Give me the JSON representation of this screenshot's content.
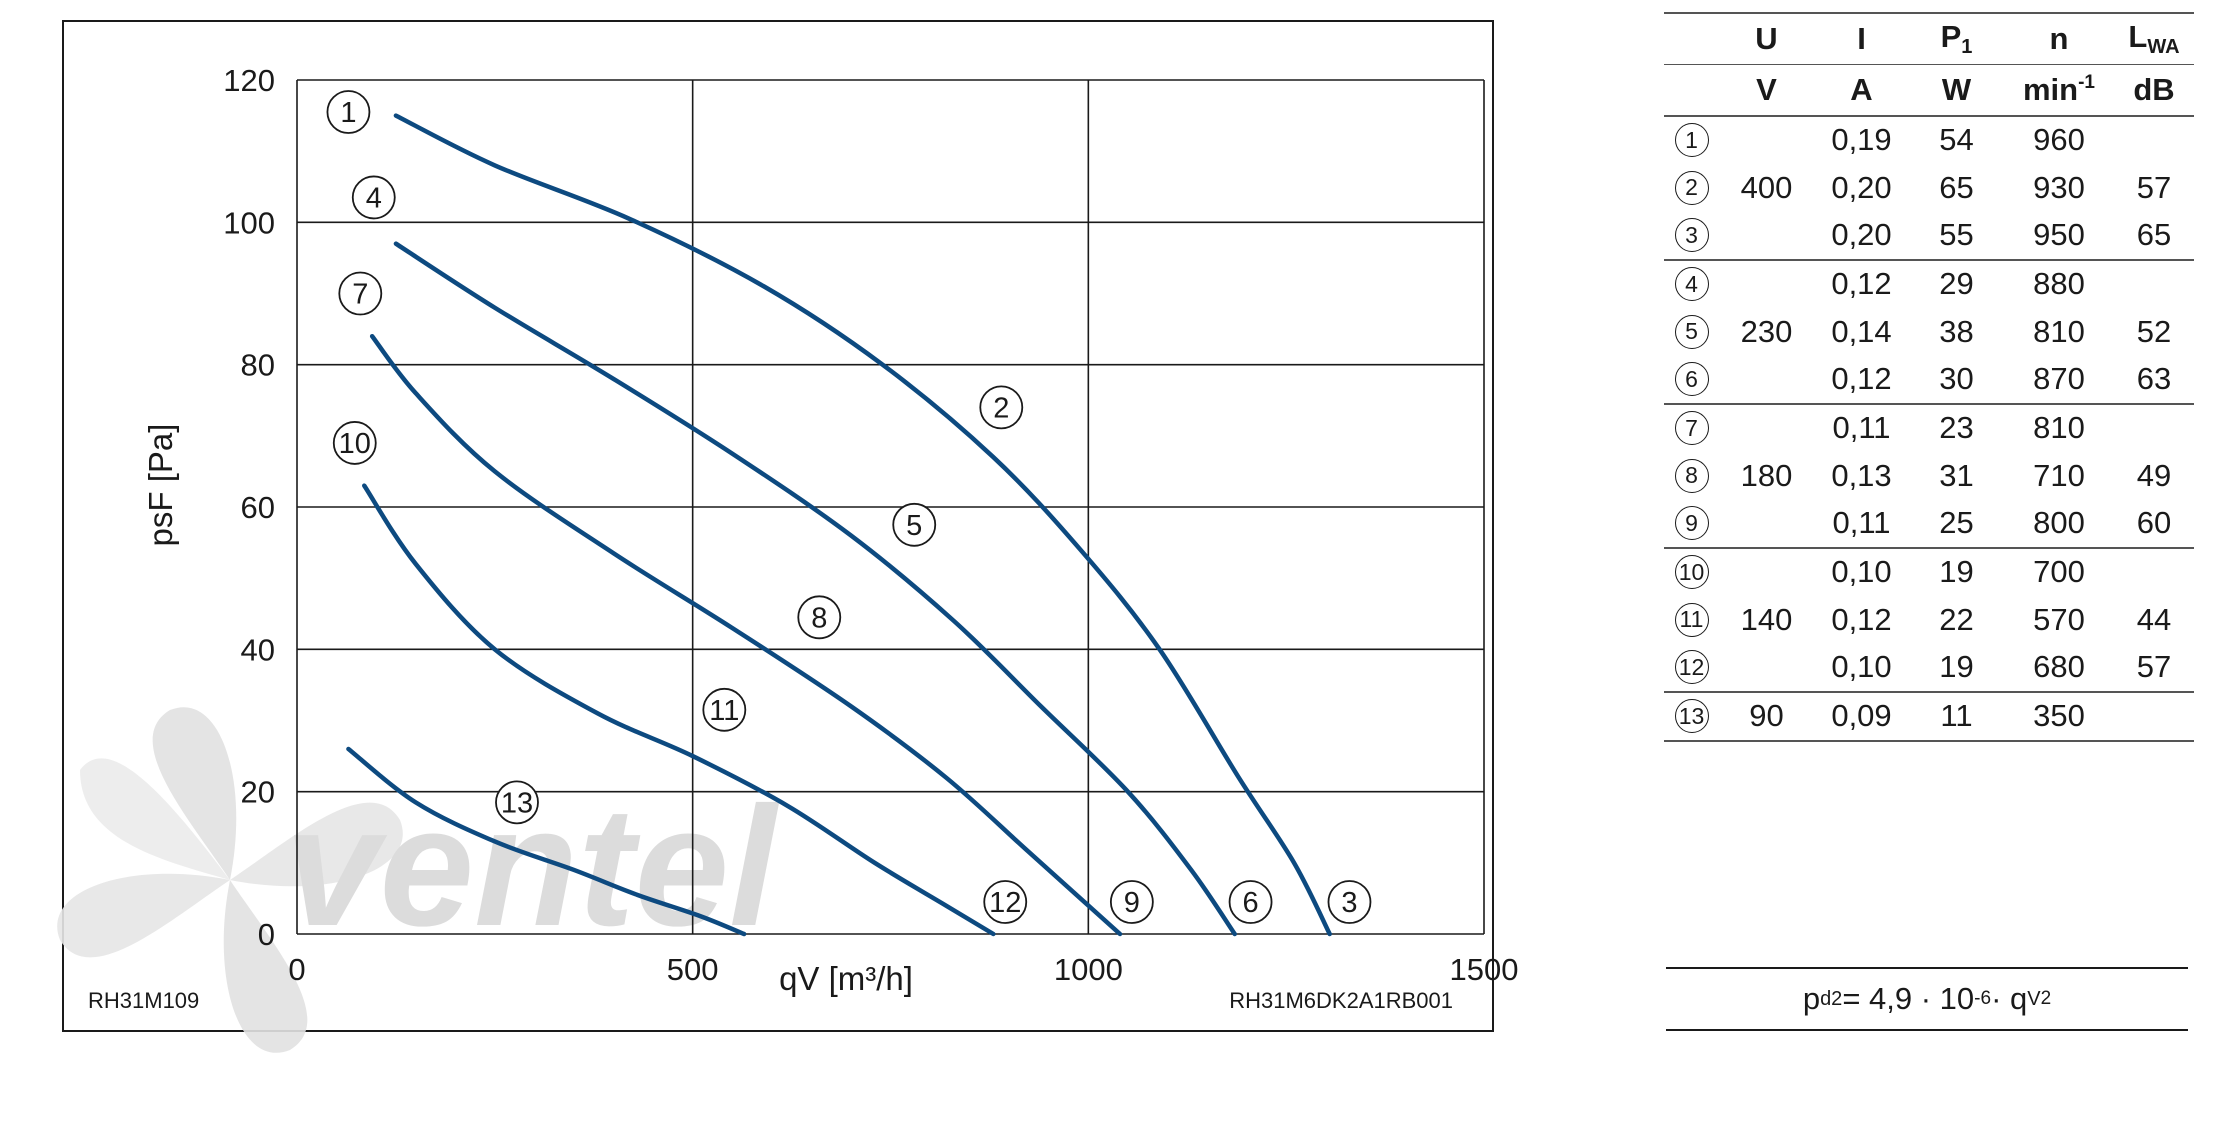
{
  "chart_data": {
    "type": "line",
    "xlabel": "qV [m³/h]",
    "ylabel": "psF [Pa]",
    "xlim": [
      0,
      1500
    ],
    "ylim": [
      0,
      120
    ],
    "x_ticks": [
      0,
      500,
      1000,
      1500
    ],
    "y_ticks": [
      0,
      20,
      40,
      60,
      80,
      100,
      120
    ],
    "grid": true,
    "model_left": "RH31M109",
    "model_right": "RH31M6DK2A1RB001",
    "series": [
      {
        "name": "1",
        "x": [
          125,
          250,
          420,
          590,
          740,
          880,
          990,
          1090,
          1190,
          1260,
          1305
        ],
        "y": [
          115,
          108,
          100.5,
          91,
          80,
          67,
          54,
          40,
          22,
          10,
          0
        ]
      },
      {
        "name": "4",
        "x": [
          125,
          250,
          400,
          550,
          700,
          830,
          940,
          1050,
          1130,
          1185
        ],
        "y": [
          97,
          88,
          78,
          67.5,
          56,
          44,
          32,
          20,
          9,
          0
        ]
      },
      {
        "name": "7",
        "x": [
          95,
          150,
          250,
          400,
          550,
          700,
          820,
          920,
          990,
          1040
        ],
        "y": [
          84,
          76,
          65,
          53.5,
          43,
          32,
          22,
          12,
          5,
          0
        ]
      },
      {
        "name": "10",
        "x": [
          85,
          150,
          250,
          380,
          500,
          620,
          730,
          820,
          880
        ],
        "y": [
          63,
          52,
          40,
          31,
          25,
          18,
          10,
          4,
          0
        ]
      },
      {
        "name": "13",
        "x": [
          65,
          150,
          250,
          350,
          430,
          510,
          565
        ],
        "y": [
          26,
          18.5,
          13,
          9,
          5.5,
          2.5,
          0
        ]
      }
    ],
    "curve_markers": [
      {
        "label": "1",
        "x": 65,
        "y": 115.5
      },
      {
        "label": "4",
        "x": 97,
        "y": 103.5
      },
      {
        "label": "7",
        "x": 80,
        "y": 90
      },
      {
        "label": "10",
        "x": 73,
        "y": 69
      },
      {
        "label": "13",
        "x": 278,
        "y": 18.5
      },
      {
        "label": "2",
        "x": 890,
        "y": 74
      },
      {
        "label": "5",
        "x": 780,
        "y": 57.5
      },
      {
        "label": "8",
        "x": 660,
        "y": 44.5
      },
      {
        "label": "11",
        "x": 540,
        "y": 31.5
      },
      {
        "label": "12",
        "x": 895,
        "y": 4.5
      },
      {
        "label": "9",
        "x": 1055,
        "y": 4.5
      },
      {
        "label": "6",
        "x": 1205,
        "y": 4.5
      },
      {
        "label": "3",
        "x": 1330,
        "y": 4.5
      }
    ]
  },
  "table": {
    "headers": [
      {
        "main": "U",
        "sub": "",
        "unit": "V"
      },
      {
        "main": "I",
        "sub": "",
        "unit": "A"
      },
      {
        "main": "P",
        "sub": "1",
        "unit": "W"
      },
      {
        "main": "n",
        "sub": "",
        "unit": "min",
        "unit_sup": "-1"
      },
      {
        "main": "L",
        "sub": "WA",
        "unit": "dB"
      }
    ],
    "groups": [
      {
        "u": "400",
        "rows": [
          {
            "no": "1",
            "i": "0,19",
            "p": "54",
            "n": "960",
            "l": ""
          },
          {
            "no": "2",
            "i": "0,20",
            "p": "65",
            "n": "930",
            "l": "57"
          },
          {
            "no": "3",
            "i": "0,20",
            "p": "55",
            "n": "950",
            "l": "65"
          }
        ]
      },
      {
        "u": "230",
        "rows": [
          {
            "no": "4",
            "i": "0,12",
            "p": "29",
            "n": "880",
            "l": ""
          },
          {
            "no": "5",
            "i": "0,14",
            "p": "38",
            "n": "810",
            "l": "52"
          },
          {
            "no": "6",
            "i": "0,12",
            "p": "30",
            "n": "870",
            "l": "63"
          }
        ]
      },
      {
        "u": "180",
        "rows": [
          {
            "no": "7",
            "i": "0,11",
            "p": "23",
            "n": "810",
            "l": ""
          },
          {
            "no": "8",
            "i": "0,13",
            "p": "31",
            "n": "710",
            "l": "49"
          },
          {
            "no": "9",
            "i": "0,11",
            "p": "25",
            "n": "800",
            "l": "60"
          }
        ]
      },
      {
        "u": "140",
        "rows": [
          {
            "no": "10",
            "i": "0,10",
            "p": "19",
            "n": "700",
            "l": ""
          },
          {
            "no": "11",
            "i": "0,12",
            "p": "22",
            "n": "570",
            "l": "44"
          },
          {
            "no": "12",
            "i": "0,10",
            "p": "19",
            "n": "680",
            "l": "57"
          }
        ]
      },
      {
        "u": "90",
        "rows": [
          {
            "no": "13",
            "i": "0,09",
            "p": "11",
            "n": "350",
            "l": ""
          }
        ]
      }
    ]
  },
  "formula": {
    "lhs": "p",
    "lhs_sub": "d2",
    "mid": " = 4,9 · 10",
    "exp": "-6",
    "rhs": " · q",
    "rhs_sub": "V",
    "rhs_sup": "2"
  },
  "watermark": "ventel",
  "colors": {
    "curve": "#0d4a80",
    "grid": "#1a1a1a",
    "watermark": "#d9d9d9",
    "watermark_accent": "#cfe4f6"
  }
}
